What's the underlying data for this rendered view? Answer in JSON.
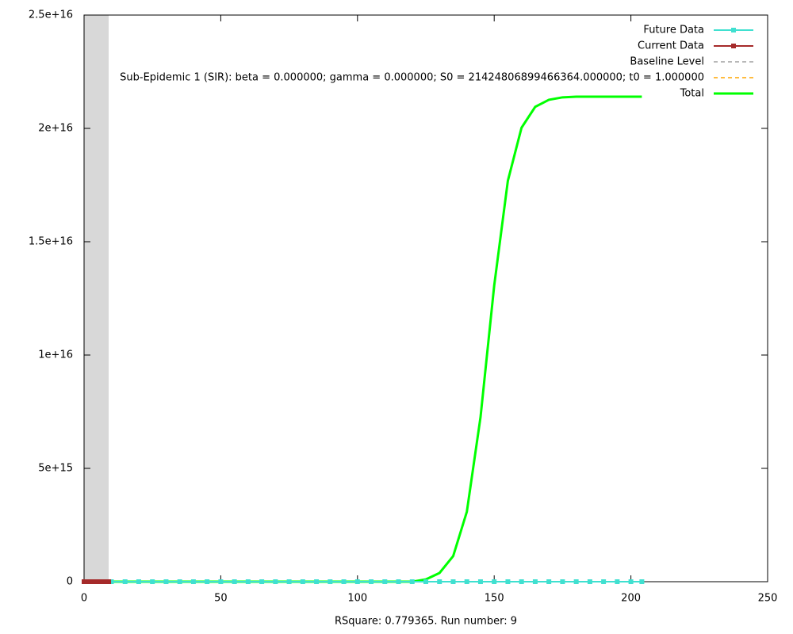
{
  "chart_data": {
    "type": "line",
    "xlabel": "RSquare: 0.779365. Run number: 9",
    "xlim": [
      0,
      250
    ],
    "xticks": [
      0,
      50,
      100,
      150,
      200,
      250
    ],
    "ylim": [
      0,
      2.5e+16
    ],
    "yticks": [
      0,
      {
        "value": 5000000000000000.0,
        "label": "5e+15"
      },
      {
        "value": 1e+16,
        "label": "1e+16"
      },
      {
        "value": 1.5e+16,
        "label": "1.5e+16"
      },
      {
        "value": 2e+16,
        "label": "2e+16"
      },
      {
        "value": 2.5e+16,
        "label": "2.5e+16"
      }
    ],
    "legend": "top-right",
    "series": [
      {
        "name": "Future Data",
        "color": "#40e0d0",
        "style": "linespoints",
        "x": [
          10,
          15,
          20,
          25,
          30,
          35,
          40,
          45,
          50,
          55,
          60,
          65,
          70,
          75,
          80,
          85,
          90,
          95,
          100,
          105,
          110,
          115,
          120,
          125,
          130,
          135,
          140,
          145,
          150,
          155,
          160,
          165,
          170,
          175,
          180,
          185,
          190,
          195,
          200,
          204
        ],
        "values": [
          0,
          0,
          0,
          0,
          0,
          0,
          0,
          0,
          0,
          0,
          0,
          0,
          0,
          0,
          0,
          0,
          0,
          0,
          0,
          0,
          0,
          0,
          0,
          0,
          0,
          0,
          0,
          0,
          0,
          0,
          0,
          0,
          0,
          0,
          0,
          0,
          0,
          0,
          0,
          0
        ]
      },
      {
        "name": "Current Data",
        "color": "#a52a2a",
        "style": "linespoints",
        "x": [
          0,
          1,
          2,
          3,
          4,
          5,
          6,
          7,
          8,
          9
        ],
        "values": [
          0,
          0,
          0,
          0,
          0,
          0,
          0,
          0,
          0,
          0
        ]
      },
      {
        "name": "Baseline Level",
        "color": "#a0a0a0",
        "style": "dashed",
        "x": [
          0,
          204
        ],
        "values": [
          0,
          0
        ]
      },
      {
        "name": "Sub-Epidemic 1 (SIR): beta = 0.000000; gamma = 0.000000; S0 = 21424806899466364.000000; t0 = 1.000000",
        "color": "#ffa500",
        "style": "dashed",
        "x": [
          0,
          5,
          10,
          15,
          20,
          25,
          30,
          35,
          40,
          45,
          50,
          55,
          60,
          65,
          70,
          75,
          80,
          85,
          90,
          95,
          100,
          105,
          110,
          115,
          120,
          125,
          130,
          135,
          140,
          145,
          150,
          155,
          160,
          165,
          170,
          175,
          180,
          185,
          190,
          195,
          200,
          204
        ],
        "values": [
          0,
          0,
          0,
          0,
          0,
          0,
          0,
          0,
          0,
          0,
          0,
          0,
          0,
          0,
          0,
          0,
          0,
          0,
          0,
          0,
          0,
          0,
          0,
          0,
          0,
          100000000000000.0,
          385000000000000.0,
          1130000000000000.0,
          3090000000000000.0,
          7260000000000000.0,
          1.306e+16,
          1.769e+16,
          2.003e+16,
          2.095e+16,
          2.126e+16,
          2.137e+16,
          2.14e+16,
          2.14e+16,
          2.14e+16,
          2.14e+16,
          2.14e+16,
          2.14e+16
        ]
      },
      {
        "name": "Total",
        "color": "#00ff00",
        "style": "thick",
        "x": [
          0,
          5,
          10,
          15,
          20,
          25,
          30,
          35,
          40,
          45,
          50,
          55,
          60,
          65,
          70,
          75,
          80,
          85,
          90,
          95,
          100,
          105,
          110,
          115,
          120,
          125,
          130,
          135,
          140,
          145,
          150,
          155,
          160,
          165,
          170,
          175,
          180,
          185,
          190,
          195,
          200,
          204
        ],
        "values": [
          0,
          0,
          0,
          0,
          0,
          0,
          0,
          0,
          0,
          0,
          0,
          0,
          0,
          0,
          0,
          0,
          0,
          0,
          0,
          0,
          0,
          0,
          0,
          0,
          0,
          100000000000000.0,
          385000000000000.0,
          1130000000000000.0,
          3090000000000000.0,
          7260000000000000.0,
          1.306e+16,
          1.769e+16,
          2.003e+16,
          2.095e+16,
          2.126e+16,
          2.137e+16,
          2.14e+16,
          2.14e+16,
          2.14e+16,
          2.14e+16,
          2.14e+16,
          2.14e+16
        ]
      }
    ]
  }
}
